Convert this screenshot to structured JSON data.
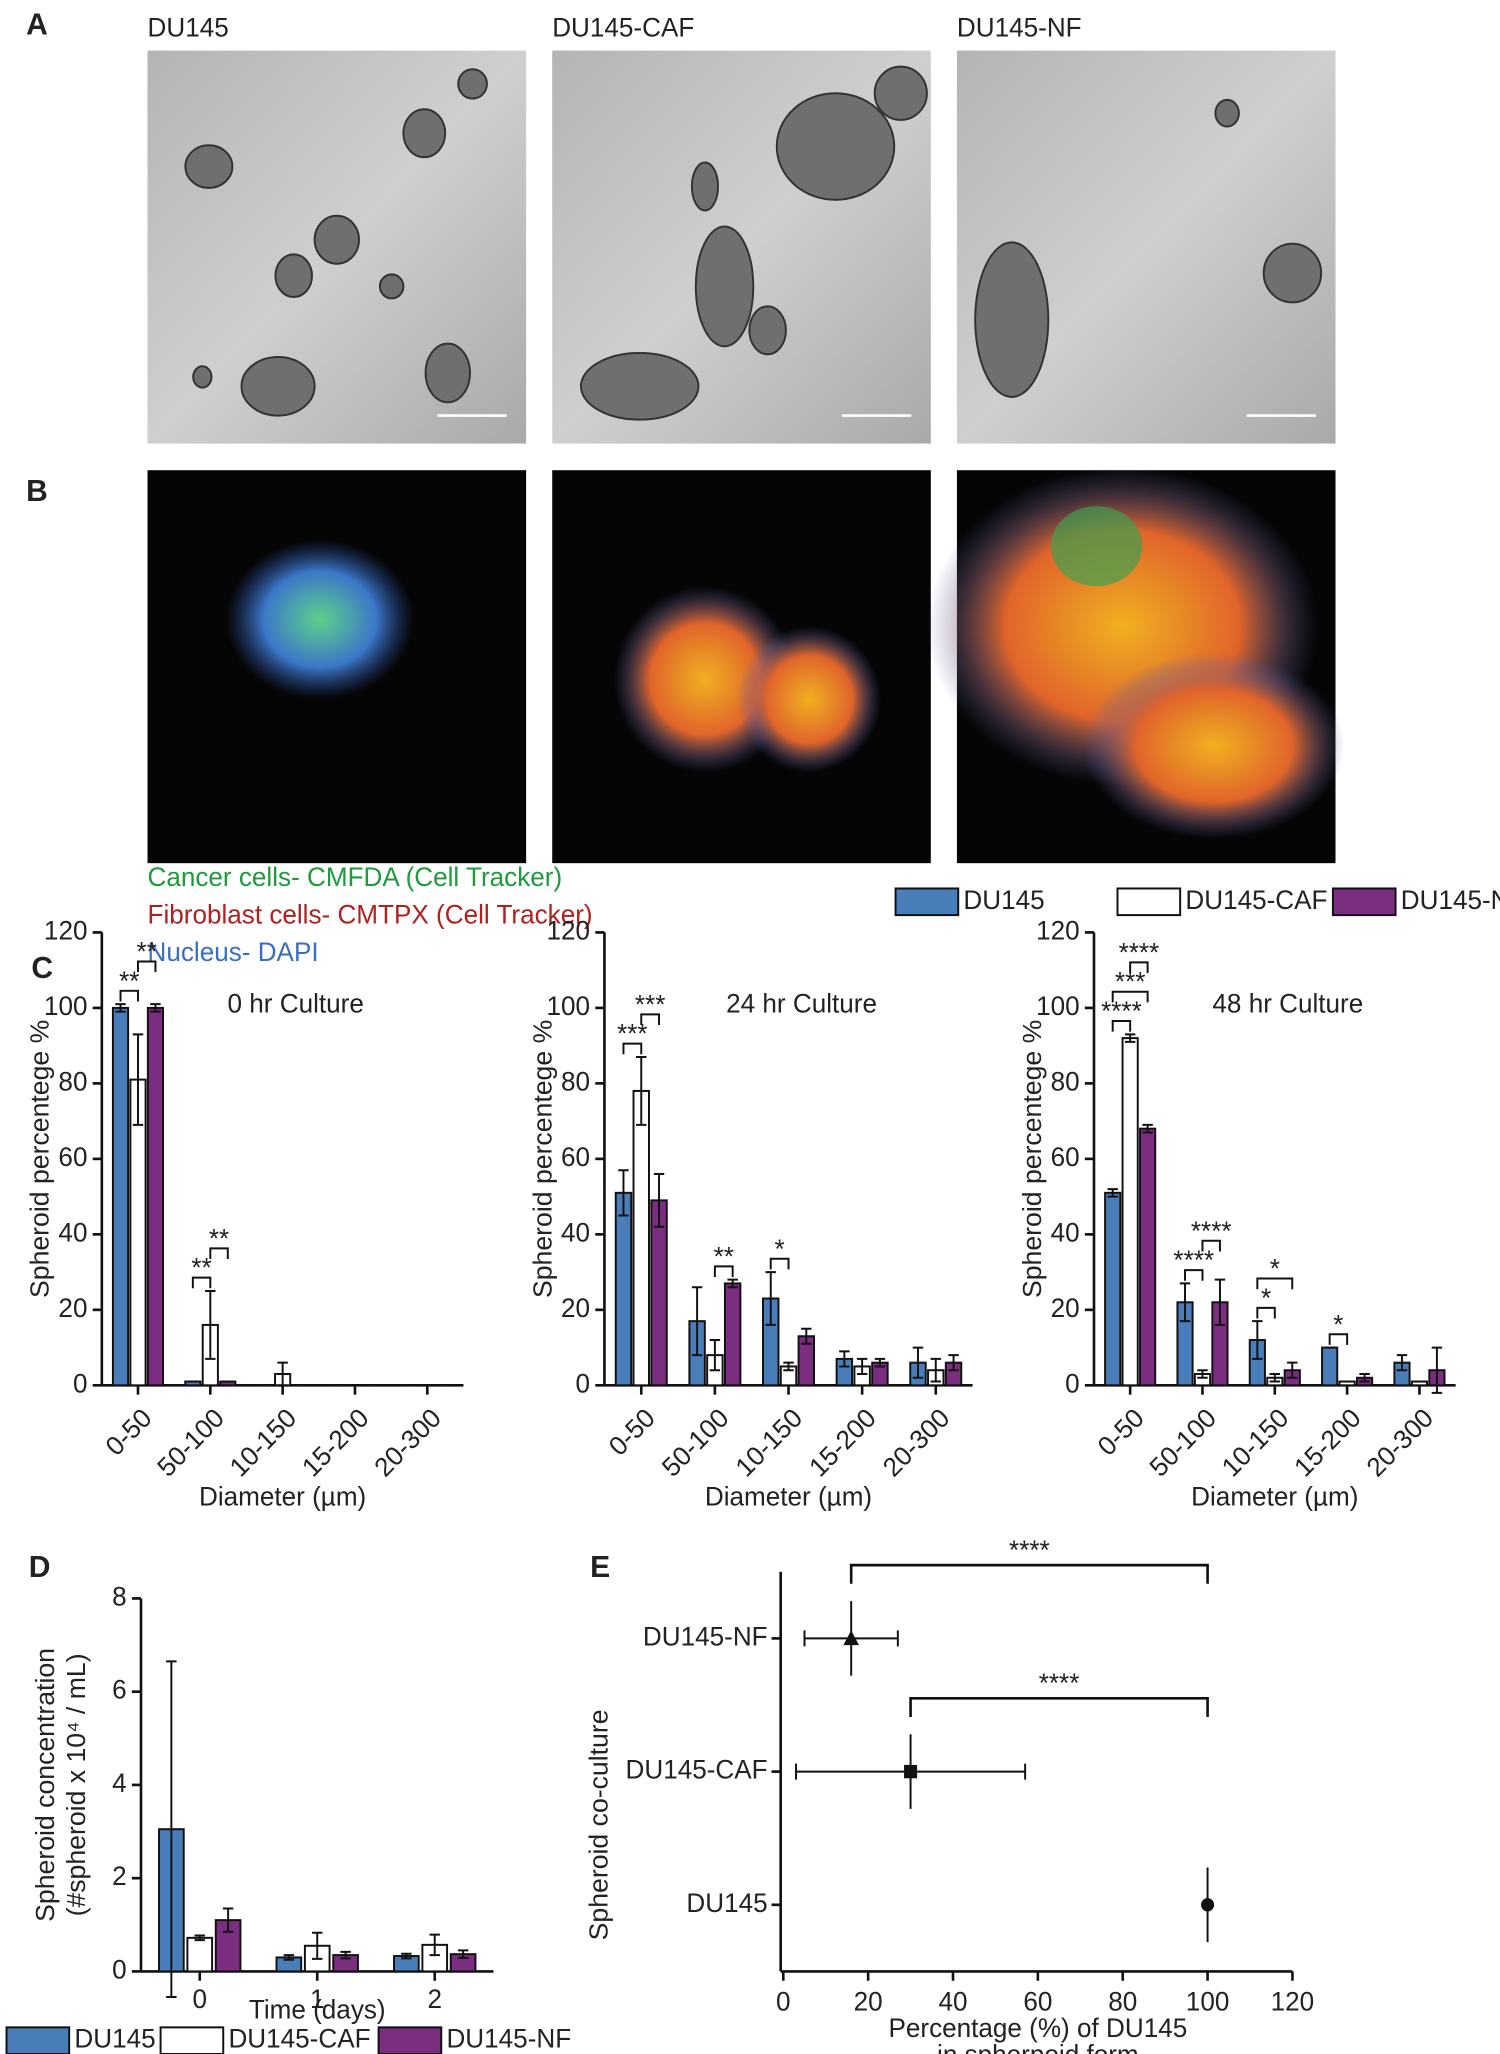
{
  "panel_labels": [
    "A",
    "B",
    "C",
    "D",
    "E"
  ],
  "image_titles": [
    "DU145",
    "DU145-CAF",
    "DU145-NF"
  ],
  "stain_legend": [
    "Cancer cells- CMFDA  (Cell Tracker)",
    "Fibroblast cells- CMTPX (Cell Tracker)",
    "Nucleus- DAPI"
  ],
  "chart_data": [
    {
      "type": "bar",
      "title": "0 hr Culture",
      "x_label": "Diameter (µm)",
      "y_label": [
        "Spheroid percentege %"
      ],
      "categories": [
        "0-50",
        "50-100",
        "10-150",
        "15-200",
        "20-300"
      ],
      "ylim": [
        0,
        120
      ],
      "yticks": [
        0,
        20,
        40,
        60,
        80,
        100,
        120
      ],
      "series": [
        {
          "name": "DU145",
          "color": "#4a7ebb",
          "values": [
            100,
            1,
            0,
            0,
            0
          ],
          "errors": [
            1,
            0,
            0,
            0,
            0
          ]
        },
        {
          "name": "DU145-CAF",
          "color": "#ffffff",
          "values": [
            81,
            16,
            3,
            0,
            0
          ],
          "errors": [
            12,
            9,
            3,
            0,
            0
          ]
        },
        {
          "name": "DU145-NF",
          "color": "#7b2d7f",
          "values": [
            100,
            1,
            0,
            0,
            0
          ],
          "errors": [
            1,
            0,
            0,
            0,
            0
          ]
        }
      ],
      "annotations": [
        {
          "text": "**",
          "category": 0,
          "from": 0,
          "to": 1
        },
        {
          "text": "**",
          "category": 0,
          "from": 1,
          "to": 2
        },
        {
          "text": "**",
          "category": 1,
          "from": 0,
          "to": 1
        },
        {
          "text": "**",
          "category": 1,
          "from": 1,
          "to": 2
        }
      ]
    },
    {
      "type": "bar",
      "title": "24 hr Culture",
      "x_label": "Diameter (µm)",
      "y_label": [
        "Spheroid percentege %"
      ],
      "categories": [
        "0-50",
        "50-100",
        "10-150",
        "15-200",
        "20-300"
      ],
      "ylim": [
        0,
        120
      ],
      "yticks": [
        0,
        20,
        40,
        60,
        80,
        100,
        120
      ],
      "series": [
        {
          "name": "DU145",
          "color": "#4a7ebb",
          "values": [
            51,
            17,
            23,
            7,
            6
          ],
          "errors": [
            6,
            9,
            7,
            2,
            4
          ]
        },
        {
          "name": "DU145-CAF",
          "color": "#ffffff",
          "values": [
            78,
            8,
            5,
            5,
            4
          ],
          "errors": [
            9,
            4,
            1,
            2,
            3
          ]
        },
        {
          "name": "DU145-NF",
          "color": "#7b2d7f",
          "values": [
            49,
            27,
            13,
            6,
            6
          ],
          "errors": [
            7,
            1,
            2,
            1,
            2
          ]
        }
      ],
      "annotations": [
        {
          "text": "***",
          "category": 0,
          "from": 0,
          "to": 1
        },
        {
          "text": "***",
          "category": 0,
          "from": 1,
          "to": 2
        },
        {
          "text": "**",
          "category": 1,
          "from": 1,
          "to": 2
        },
        {
          "text": "*",
          "category": 2,
          "from": 0,
          "to": 1
        }
      ]
    },
    {
      "type": "bar",
      "title": "48 hr Culture",
      "x_label": "Diameter (µm)",
      "y_label": [
        "Spheroid percentege %"
      ],
      "categories": [
        "0-50",
        "50-100",
        "10-150",
        "15-200",
        "20-300"
      ],
      "ylim": [
        0,
        120
      ],
      "yticks": [
        0,
        20,
        40,
        60,
        80,
        100,
        120
      ],
      "series": [
        {
          "name": "DU145",
          "color": "#4a7ebb",
          "values": [
            51,
            22,
            12,
            10,
            6
          ],
          "errors": [
            1,
            5,
            5,
            0,
            2
          ]
        },
        {
          "name": "DU145-CAF",
          "color": "#ffffff",
          "values": [
            92,
            3,
            2,
            1,
            1
          ],
          "errors": [
            1,
            1,
            1,
            0,
            0
          ]
        },
        {
          "name": "DU145-NF",
          "color": "#7b2d7f",
          "values": [
            68,
            22,
            4,
            2,
            4
          ],
          "errors": [
            1,
            6,
            2,
            1,
            6
          ]
        }
      ],
      "annotations": [
        {
          "text": "****",
          "category": 0,
          "from": 0,
          "to": 1
        },
        {
          "text": "***",
          "category": 0,
          "from": 0,
          "to": 2
        },
        {
          "text": "****",
          "category": 0,
          "from": 1,
          "to": 2
        },
        {
          "text": "****",
          "category": 1,
          "from": 0,
          "to": 1
        },
        {
          "text": "****",
          "category": 1,
          "from": 1,
          "to": 2
        },
        {
          "text": "*",
          "category": 2,
          "from": 0,
          "to": 1
        },
        {
          "text": "*",
          "category": 2,
          "from": 0,
          "to": 2
        },
        {
          "text": "*",
          "category": 3,
          "from": 0,
          "to": 1
        }
      ]
    },
    {
      "type": "bar",
      "x_label": "Time (days)",
      "y_label": [
        "Spheroid concentration",
        "(#spheroid x 10⁴ / mL)"
      ],
      "categories": [
        "0",
        "1",
        "2"
      ],
      "ylim": [
        0,
        8
      ],
      "yticks": [
        0,
        2,
        4,
        6,
        8
      ],
      "series": [
        {
          "name": "DU145",
          "color": "#4a7ebb",
          "values": [
            3.05,
            0.3,
            0.33
          ],
          "errors": [
            3.6,
            0.05,
            0.05
          ]
        },
        {
          "name": "DU145-CAF",
          "color": "#ffffff",
          "values": [
            0.72,
            0.55,
            0.57
          ],
          "errors": [
            0.05,
            0.28,
            0.22
          ]
        },
        {
          "name": "DU145-NF",
          "color": "#7b2d7f",
          "values": [
            1.1,
            0.35,
            0.37
          ],
          "errors": [
            0.25,
            0.07,
            0.08
          ]
        }
      ],
      "annotations": []
    },
    {
      "type": "scatter",
      "x_label": [
        "Percentage (%) of DU145",
        "in spherpoid form"
      ],
      "y_label": [
        "Spheroid co-culture"
      ],
      "categories": [
        "DU145",
        "DU145-CAF",
        "DU145-NF"
      ],
      "values": [
        100,
        30,
        16
      ],
      "errors": [
        0,
        27,
        11
      ],
      "markers": [
        "circle",
        "square",
        "triangle"
      ],
      "color": "#111111",
      "xlim": [
        0,
        120
      ],
      "xticks": [
        0,
        20,
        40,
        60,
        80,
        100,
        120
      ],
      "annotations": [
        {
          "text": "****",
          "from": 2,
          "to": 0
        },
        {
          "text": "****",
          "from": 1,
          "to": 0
        }
      ]
    }
  ]
}
